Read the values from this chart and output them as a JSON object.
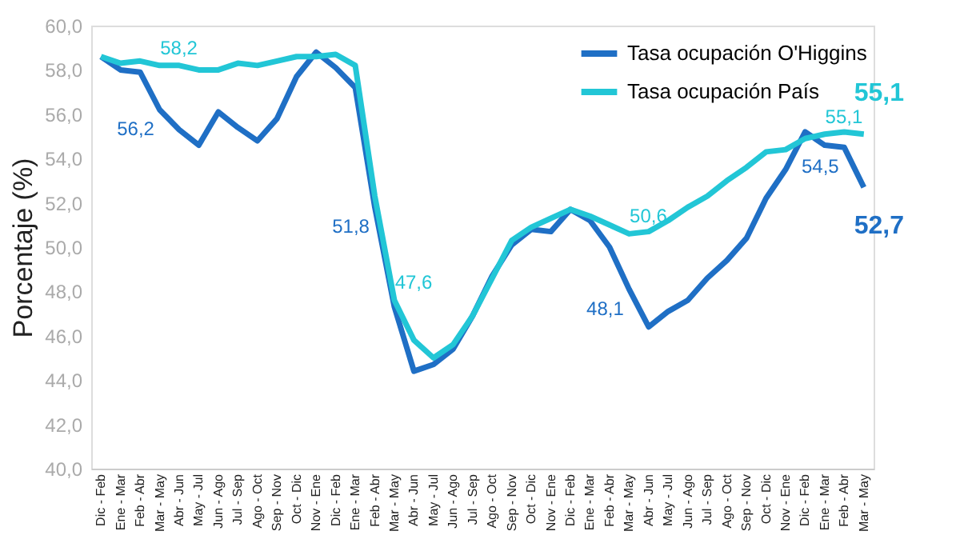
{
  "chart_data": {
    "type": "line",
    "ylabel": "Porcentaje (%)",
    "categories": [
      "Dic - Feb",
      "Ene - Mar",
      "Feb - Abr",
      "Mar - May",
      "Abr - Jun",
      "May - Jul",
      "Jun - Ago",
      "Jul - Sep",
      "Ago - Oct",
      "Sep - Nov",
      "Oct - Dic",
      "Nov - Ene",
      "Dic - Feb",
      "Ene - Mar",
      "Feb - Abr",
      "Mar - May",
      "Abr - Jun",
      "May - Jul",
      "Jun - Ago",
      "Jul - Sep",
      "Ago - Oct",
      "Sep - Nov",
      "Oct - Dic",
      "Nov - Ene",
      "Dic - Feb",
      "Ene - Mar",
      "Feb - Abr",
      "Mar - May",
      "Abr - Jun",
      "May - Jul",
      "Jun - Ago",
      "Jul - Sep",
      "Ago - Oct",
      "Sep - Nov",
      "Oct - Dic",
      "Nov - Ene",
      "Dic - Feb",
      "Ene - Mar",
      "Feb - Abr",
      "Mar - May"
    ],
    "series": [
      {
        "name": "Tasa ocupación O'Higgins",
        "color": "#1f6fc5",
        "values": [
          58.6,
          58.0,
          57.9,
          56.2,
          55.3,
          54.6,
          56.1,
          55.4,
          54.8,
          55.8,
          57.7,
          58.8,
          58.1,
          57.2,
          51.8,
          47.3,
          44.4,
          44.7,
          45.4,
          46.9,
          48.7,
          50.1,
          50.8,
          50.7,
          51.7,
          51.2,
          50.0,
          48.1,
          46.4,
          47.1,
          47.6,
          48.6,
          49.4,
          50.4,
          52.2,
          53.5,
          55.2,
          54.6,
          54.5,
          52.7
        ],
        "value_labels": [
          null,
          null,
          null,
          "56,2",
          null,
          null,
          null,
          null,
          null,
          null,
          null,
          null,
          null,
          null,
          "51,8",
          null,
          null,
          null,
          null,
          null,
          null,
          null,
          null,
          null,
          null,
          null,
          null,
          "48,1",
          null,
          null,
          null,
          null,
          null,
          null,
          null,
          null,
          null,
          null,
          "54,5",
          "52,7"
        ]
      },
      {
        "name": "Tasa ocupación País",
        "color": "#22c6d6",
        "values": [
          58.6,
          58.3,
          58.4,
          58.2,
          58.2,
          58.0,
          58.0,
          58.3,
          58.2,
          58.4,
          58.6,
          58.6,
          58.7,
          58.2,
          52.3,
          47.6,
          45.8,
          45.0,
          45.6,
          46.9,
          48.6,
          50.3,
          50.9,
          51.3,
          51.7,
          51.4,
          51.0,
          50.6,
          50.7,
          51.2,
          51.8,
          52.3,
          53.0,
          53.6,
          54.3,
          54.4,
          54.9,
          55.1,
          55.2,
          55.1
        ],
        "value_labels": [
          null,
          null,
          null,
          "58,2",
          null,
          null,
          null,
          null,
          null,
          null,
          null,
          null,
          null,
          null,
          null,
          "47,6",
          null,
          null,
          null,
          null,
          null,
          null,
          null,
          null,
          null,
          null,
          null,
          "50,6",
          null,
          null,
          null,
          null,
          null,
          null,
          null,
          null,
          null,
          "55,1",
          null,
          "55,1"
        ]
      }
    ],
    "ylim": [
      40,
      60
    ],
    "yticks": [
      {
        "value": 40,
        "label": "40,0"
      },
      {
        "value": 42,
        "label": "42,0"
      },
      {
        "value": 44,
        "label": "44,0"
      },
      {
        "value": 46,
        "label": "46,0"
      },
      {
        "value": 48,
        "label": "48,0"
      },
      {
        "value": 50,
        "label": "50,0"
      },
      {
        "value": 52,
        "label": "52,0"
      },
      {
        "value": 54,
        "label": "54,0"
      },
      {
        "value": 56,
        "label": "56,0"
      },
      {
        "value": 58,
        "label": "58,0"
      },
      {
        "value": 60,
        "label": "60,0"
      }
    ],
    "grid": false,
    "legend": "top right",
    "marker": "none",
    "line_style": "solid"
  }
}
